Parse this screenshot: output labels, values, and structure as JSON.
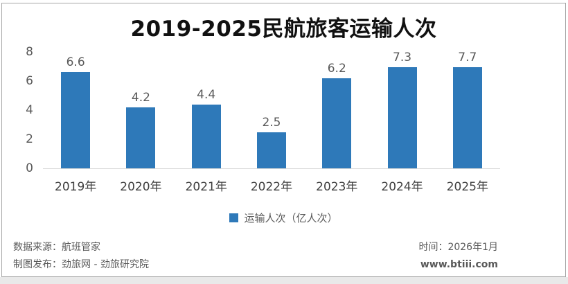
{
  "chart_data": {
    "type": "bar",
    "title": "2019-2025民航旅客运输人次",
    "categories": [
      "2019年",
      "2020年",
      "2021年",
      "2022年",
      "2023年",
      "2024年",
      "2025年"
    ],
    "values": [
      6.6,
      4.2,
      4.4,
      2.5,
      6.2,
      7.3,
      7.7
    ],
    "series_name": "运输人次（亿人次）",
    "xlabel": "",
    "ylabel": "",
    "ylim": [
      0,
      8
    ],
    "yticks": [
      0,
      2,
      4,
      6,
      8
    ],
    "grid": false,
    "legend_position": "bottom",
    "bar_color": "#2e79b9",
    "axis_line_color": "#d9d9d9",
    "value_label_color": "#595959",
    "tick_label_color": "#595959"
  },
  "legend": {
    "label": "运输人次（亿人次）",
    "swatch_color": "#2e79b9"
  },
  "footer": {
    "data_source": "数据来源：航班管家",
    "publisher": "制图发布：劲旅网 - 劲旅研究院",
    "time": "时间：2026年1月",
    "website": "www.btiii.com"
  },
  "colors": {
    "border": "#a6a6a6",
    "bottom_strip": "#e9e9e9",
    "title_text": "#111111",
    "footer_text": "#595959"
  }
}
